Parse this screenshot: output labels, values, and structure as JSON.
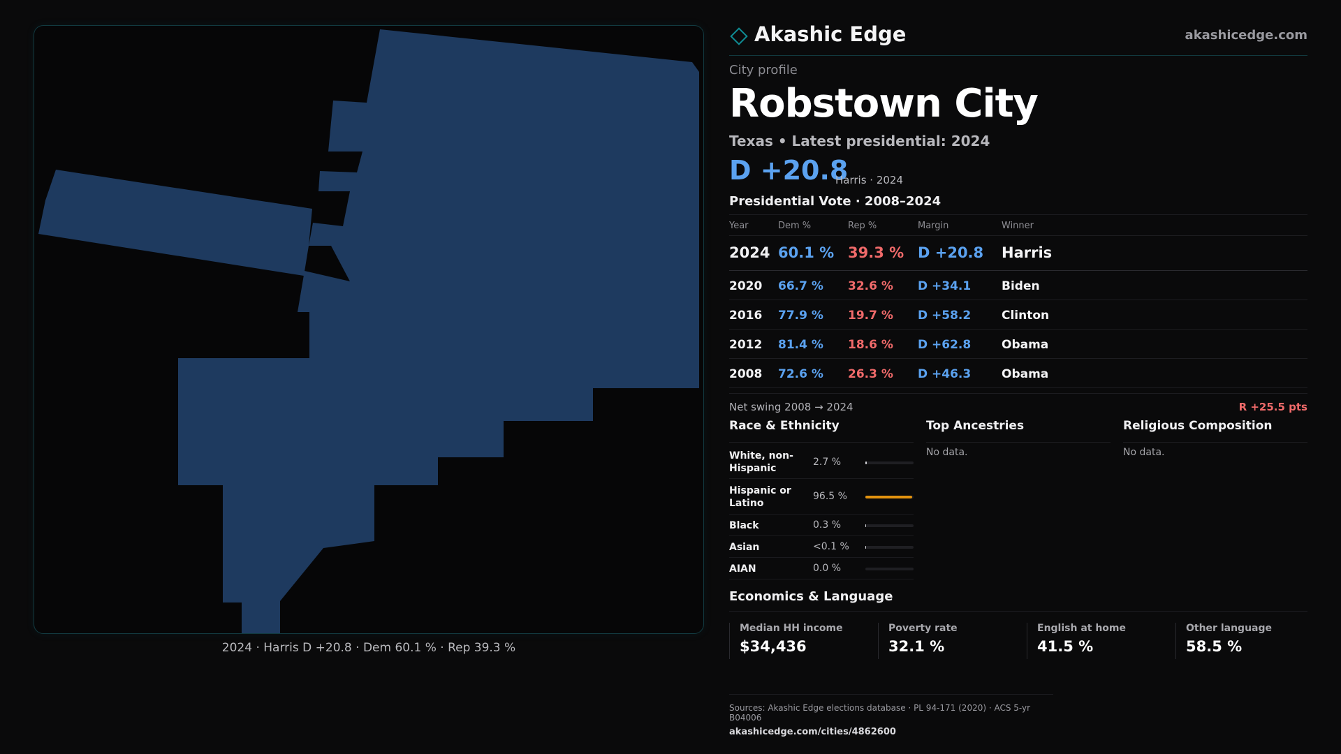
{
  "brand": {
    "name": "Akashic Edge",
    "url": "akashicedge.com",
    "accent": "#0f8c94"
  },
  "profile": {
    "eyebrow": "City profile",
    "city": "Robstown City",
    "subline": "Texas • Latest presidential: 2024",
    "margin_big": "D +20.8",
    "margin_note": "Harris · 2024"
  },
  "map": {
    "caption": "2024 · Harris D +20.8 · Dem 60.1 % · Rep 39.3 %",
    "fill_color": "#1e3a5f"
  },
  "vote": {
    "title": "Presidential Vote · 2008–2024",
    "headers": {
      "year": "Year",
      "dem": "Dem %",
      "rep": "Rep %",
      "margin": "Margin",
      "winner": "Winner"
    },
    "rows": [
      {
        "year": "2024",
        "dem": "60.1 %",
        "rep": "39.3 %",
        "margin": "D +20.8",
        "winner": "Harris"
      },
      {
        "year": "2020",
        "dem": "66.7 %",
        "rep": "32.6 %",
        "margin": "D +34.1",
        "winner": "Biden"
      },
      {
        "year": "2016",
        "dem": "77.9 %",
        "rep": "19.7 %",
        "margin": "D +58.2",
        "winner": "Clinton"
      },
      {
        "year": "2012",
        "dem": "81.4 %",
        "rep": "18.6 %",
        "margin": "D +62.8",
        "winner": "Obama"
      },
      {
        "year": "2008",
        "dem": "72.6 %",
        "rep": "26.3 %",
        "margin": "D +46.3",
        "winner": "Obama"
      }
    ],
    "swing_label": "Net swing 2008 → 2024",
    "swing_value": "R +25.5 pts"
  },
  "race": {
    "title": "Race & Ethnicity",
    "rows": [
      {
        "label": "White, non-Hispanic",
        "value": "2.7 %",
        "pct": 2.7
      },
      {
        "label": "Hispanic or Latino",
        "value": "96.5 %",
        "pct": 96.5
      },
      {
        "label": "Black",
        "value": "0.3 %",
        "pct": 0.3
      },
      {
        "label": "Asian",
        "value": "<0.1 %",
        "pct": 0.05
      },
      {
        "label": "AIAN",
        "value": "0.0 %",
        "pct": 0
      }
    ]
  },
  "ancestries": {
    "title": "Top Ancestries",
    "empty": "No data."
  },
  "religion": {
    "title": "Religious Composition",
    "empty": "No data."
  },
  "economics": {
    "title": "Economics & Language",
    "cards": [
      {
        "label": "Median HH income",
        "value": "$34,436"
      },
      {
        "label": "Poverty rate",
        "value": "32.1 %"
      },
      {
        "label": "English at home",
        "value": "41.5 %"
      },
      {
        "label": "Other language",
        "value": "58.5 %"
      }
    ]
  },
  "footer": {
    "sources": "Sources: Akashic Edge elections database · PL 94-171 (2020) · ACS 5-yr B04006",
    "url": "akashicedge.com/cities/4862600"
  }
}
